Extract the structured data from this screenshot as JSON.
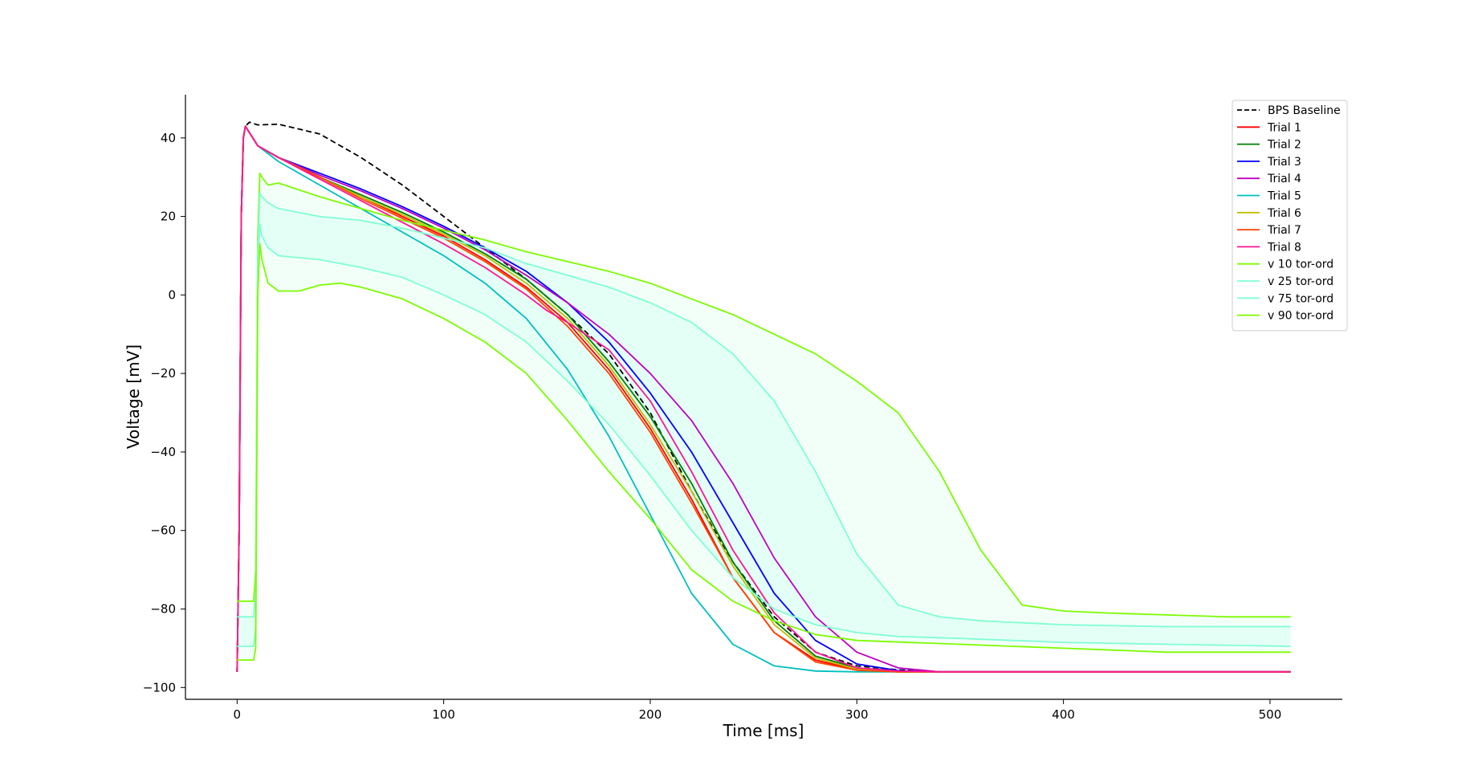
{
  "chart_data": {
    "type": "line",
    "title": "",
    "xlabel": "Time [ms]",
    "ylabel": "Voltage [mV]",
    "xlim": [
      -25,
      535
    ],
    "ylim": [
      -103,
      51
    ],
    "xticks": [
      0,
      100,
      200,
      300,
      400,
      500
    ],
    "yticks": [
      -100,
      -80,
      -60,
      -40,
      -20,
      0,
      20,
      40
    ],
    "xtick_labels": [
      "0",
      "100",
      "200",
      "300",
      "400",
      "500"
    ],
    "ytick_labels": [
      "−100",
      "−80",
      "−60",
      "−40",
      "−20",
      "0",
      "20",
      "40"
    ],
    "grid": false,
    "legend_position": "top-right",
    "series": [
      {
        "name": "BPS Baseline",
        "color": "#000000",
        "dash": "dashed",
        "x": [
          0,
          1,
          2,
          3,
          4,
          6,
          10,
          20,
          40,
          60,
          80,
          100,
          120,
          140,
          160,
          180,
          200,
          220,
          240,
          260,
          280,
          300,
          320,
          340,
          400,
          510
        ],
        "y": [
          -96,
          -60,
          20,
          40,
          43,
          44,
          43.3,
          43.5,
          41,
          35,
          28,
          20,
          12,
          4,
          -5,
          -15,
          -30,
          -50,
          -68,
          -82,
          -91,
          -94.5,
          -95.5,
          -96,
          -96,
          -96
        ]
      },
      {
        "name": "Trial 1",
        "color": "#ff0000",
        "x": [
          0,
          1,
          2,
          3,
          4,
          10,
          20,
          40,
          60,
          80,
          100,
          120,
          140,
          160,
          180,
          200,
          220,
          240,
          260,
          280,
          300,
          320,
          340,
          400,
          510
        ],
        "y": [
          -96,
          -60,
          20,
          40,
          43,
          38,
          35,
          30,
          25,
          20,
          15,
          9,
          2,
          -7,
          -19,
          -34,
          -52,
          -72,
          -86,
          -93,
          -95.5,
          -96,
          -96,
          -96,
          -96
        ]
      },
      {
        "name": "Trial 2",
        "color": "#008000",
        "x": [
          0,
          1,
          2,
          3,
          4,
          10,
          20,
          40,
          60,
          80,
          100,
          120,
          140,
          160,
          180,
          200,
          220,
          240,
          260,
          280,
          300,
          320,
          340,
          400,
          510
        ],
        "y": [
          -96,
          -60,
          20,
          40,
          43,
          38,
          35,
          30,
          25.5,
          21,
          16,
          10.5,
          4,
          -5,
          -17,
          -31,
          -48,
          -68,
          -83,
          -92,
          -95,
          -95.8,
          -96,
          -96,
          -96
        ]
      },
      {
        "name": "Trial 3",
        "color": "#0000ff",
        "x": [
          0,
          1,
          2,
          3,
          4,
          10,
          20,
          40,
          60,
          80,
          100,
          120,
          140,
          160,
          180,
          200,
          220,
          240,
          260,
          280,
          300,
          320,
          340,
          400,
          510
        ],
        "y": [
          -96,
          -60,
          20,
          40,
          43,
          38,
          35,
          31,
          27,
          22.5,
          17.5,
          12,
          6,
          -2,
          -12,
          -25,
          -40,
          -58,
          -76,
          -88,
          -94,
          -95.7,
          -96,
          -96,
          -96
        ]
      },
      {
        "name": "Trial 4",
        "color": "#bf00bf",
        "x": [
          0,
          1,
          2,
          3,
          4,
          10,
          20,
          40,
          60,
          80,
          100,
          120,
          140,
          160,
          180,
          200,
          220,
          240,
          260,
          280,
          300,
          320,
          340,
          400,
          510
        ],
        "y": [
          -96,
          -60,
          20,
          40,
          43,
          38,
          35,
          30.5,
          26.5,
          22,
          17,
          11.5,
          5,
          -2,
          -10,
          -20,
          -32,
          -48,
          -67,
          -82,
          -91,
          -95,
          -96,
          -96,
          -96
        ]
      },
      {
        "name": "Trial 5",
        "color": "#00bfbf",
        "x": [
          0,
          1,
          2,
          3,
          4,
          10,
          20,
          40,
          60,
          80,
          100,
          120,
          140,
          160,
          180,
          200,
          220,
          240,
          260,
          280,
          300,
          320,
          400,
          510
        ],
        "y": [
          -96,
          -60,
          20,
          40,
          43,
          38,
          34,
          28,
          22,
          16,
          10,
          3,
          -6,
          -19,
          -36,
          -56,
          -76,
          -89,
          -94.5,
          -95.8,
          -96,
          -96,
          -96,
          -96
        ]
      },
      {
        "name": "Trial 6",
        "color": "#bfbf00",
        "x": [
          0,
          1,
          2,
          3,
          4,
          10,
          20,
          40,
          60,
          80,
          100,
          120,
          140,
          160,
          180,
          200,
          220,
          240,
          260,
          280,
          300,
          320,
          340,
          400,
          510
        ],
        "y": [
          -96,
          -60,
          20,
          40,
          43,
          38,
          35,
          30,
          25,
          20.5,
          15.5,
          10,
          3,
          -6,
          -18,
          -33,
          -50,
          -69,
          -84,
          -92.5,
          -95.3,
          -96,
          -96,
          -96,
          -96
        ]
      },
      {
        "name": "Trial 7",
        "color": "#ff4500",
        "x": [
          0,
          1,
          2,
          3,
          4,
          10,
          20,
          40,
          60,
          80,
          100,
          120,
          140,
          160,
          180,
          200,
          220,
          240,
          260,
          280,
          300,
          320,
          340,
          400,
          510
        ],
        "y": [
          -96,
          -60,
          20,
          40,
          43,
          38,
          35,
          30,
          24.5,
          19.5,
          14.5,
          8.5,
          1.5,
          -8,
          -20,
          -35,
          -53,
          -72,
          -86,
          -93.5,
          -95.6,
          -96,
          -96,
          -96,
          -96
        ]
      },
      {
        "name": "Trial 8",
        "color": "#ff1493",
        "x": [
          0,
          1,
          2,
          3,
          4,
          10,
          20,
          40,
          60,
          80,
          100,
          120,
          140,
          150,
          160,
          180,
          200,
          220,
          240,
          260,
          280,
          300,
          320,
          340,
          400,
          510
        ],
        "y": [
          -96,
          -60,
          20,
          40,
          43,
          38,
          35,
          29.5,
          24,
          18.5,
          13,
          7,
          0,
          -4,
          -7,
          -14,
          -27,
          -45,
          -65,
          -81,
          -91,
          -95,
          -95.8,
          -96,
          -96,
          -96
        ]
      },
      {
        "name": "v 10 tor-ord",
        "color": "#7cfc00",
        "x": [
          0,
          8,
          9,
          10,
          11,
          12,
          15,
          20,
          40,
          60,
          80,
          100,
          120,
          140,
          160,
          180,
          200,
          220,
          240,
          260,
          280,
          300,
          320,
          340,
          360,
          380,
          400,
          420,
          450,
          480,
          510
        ],
        "y": [
          -78,
          -78,
          -70,
          15,
          31,
          30,
          28,
          28.5,
          25,
          22,
          19,
          16.5,
          14,
          11,
          8.5,
          6,
          3,
          -1,
          -5,
          -10,
          -15,
          -22,
          -30,
          -45,
          -65,
          -79,
          -80.5,
          -81,
          -81.5,
          -82,
          -82
        ]
      },
      {
        "name": "v 25 tor-ord",
        "color": "#7fffd4",
        "x": [
          0,
          8,
          9,
          10,
          11,
          12,
          15,
          20,
          40,
          60,
          80,
          100,
          120,
          140,
          160,
          180,
          200,
          220,
          240,
          260,
          280,
          300,
          320,
          340,
          360,
          380,
          400,
          450,
          510
        ],
        "y": [
          -82,
          -82,
          -75,
          10,
          26,
          25,
          23.5,
          22,
          20,
          19,
          17,
          14.5,
          12,
          8,
          5,
          2,
          -2,
          -7,
          -15,
          -27,
          -45,
          -66,
          -79,
          -82,
          -83,
          -83.5,
          -84,
          -84.5,
          -84.5
        ]
      },
      {
        "name": "v 75 tor-ord",
        "color": "#7fffd4",
        "x": [
          0,
          8,
          9,
          10,
          11,
          12,
          15,
          20,
          40,
          60,
          80,
          100,
          120,
          140,
          160,
          180,
          200,
          220,
          240,
          260,
          280,
          300,
          320,
          350,
          400,
          450,
          510
        ],
        "y": [
          -89.5,
          -89.5,
          -85,
          5,
          18,
          15,
          12,
          10,
          9,
          7,
          4.5,
          0,
          -5,
          -12,
          -22,
          -33,
          -46,
          -60,
          -72,
          -80,
          -84,
          -86,
          -87,
          -87.5,
          -88.5,
          -89,
          -89.5
        ]
      },
      {
        "name": "v 90 tor-ord",
        "color": "#7cfc00",
        "x": [
          0,
          8,
          9,
          10,
          11,
          12,
          15,
          20,
          30,
          40,
          50,
          60,
          80,
          100,
          120,
          140,
          160,
          180,
          200,
          220,
          240,
          260,
          280,
          300,
          350,
          400,
          450,
          510
        ],
        "y": [
          -93,
          -93,
          -90,
          0,
          13,
          9,
          3,
          1,
          1,
          2.5,
          3,
          2,
          -1,
          -6,
          -12,
          -20,
          -32,
          -45,
          -57,
          -70,
          -78,
          -83,
          -86.5,
          -88,
          -89,
          -90,
          -91,
          -91
        ]
      }
    ]
  }
}
